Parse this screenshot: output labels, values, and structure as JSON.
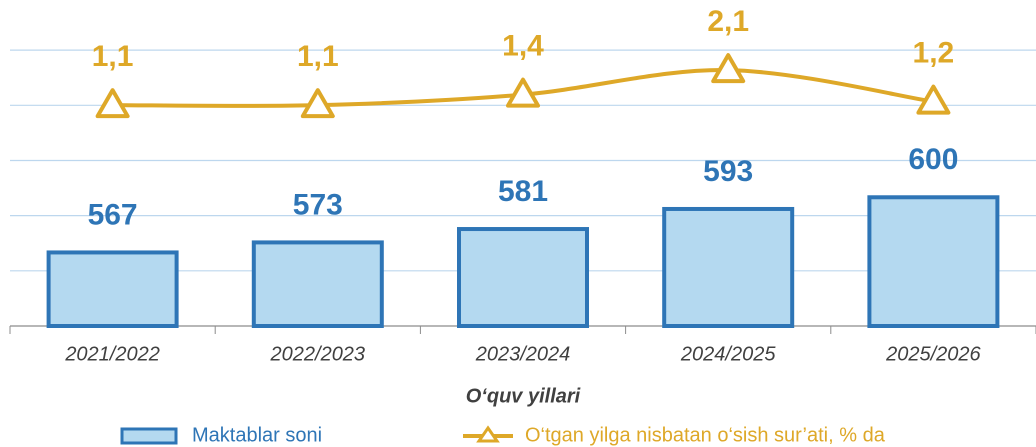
{
  "chart_data": {
    "type": "bar",
    "x_label": "O‘quv yillari",
    "categories": [
      "2021/2022",
      "2022/2023",
      "2023/2024",
      "2024/2025",
      "2025/2026"
    ],
    "series": [
      {
        "name": "Maktablar soni",
        "type": "bar",
        "color": "#b4d9f0",
        "edge_color": "#2e75b6",
        "label_color": "#2e75b6",
        "values": [
          567,
          573,
          581,
          593,
          600
        ]
      },
      {
        "name": "O‘tgan yilga nisbatan o‘sish sur’ati, % da",
        "type": "line",
        "axis": "y2",
        "color": "#dea828",
        "marker": "triangle",
        "values": [
          1.1,
          1.1,
          1.4,
          2.1,
          1.2
        ],
        "value_labels": [
          "1,1",
          "1,1",
          "1,4",
          "2,1",
          "1,2"
        ]
      }
    ],
    "ylim": [
      523,
      718
    ],
    "yticks": [
      523,
      556,
      589,
      622,
      655,
      688
    ],
    "y2lim": [
      -5.2,
      4.1
    ],
    "grid": true
  }
}
